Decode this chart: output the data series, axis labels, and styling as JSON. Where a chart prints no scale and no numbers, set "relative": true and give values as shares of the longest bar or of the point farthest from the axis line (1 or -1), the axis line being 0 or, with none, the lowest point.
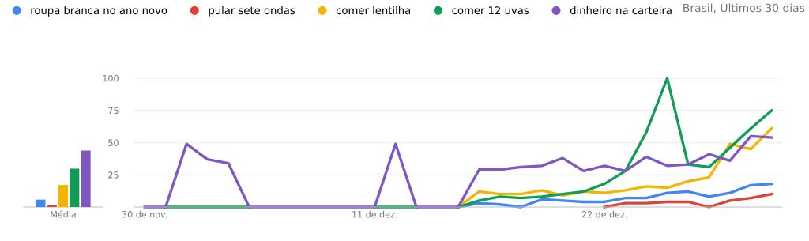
{
  "chart_data": [
    {
      "type": "bar",
      "relative": true,
      "xlabel": "Média",
      "categories": [
        null,
        null,
        null,
        null,
        null
      ],
      "values": [
        0.13,
        0.03,
        0.39,
        0.68,
        1
      ],
      "colors": [
        "#4285f4",
        "#db4437",
        "#f4b400",
        "#0f9d58",
        "#7e57c2"
      ],
      "grid": false
    },
    {
      "type": "line",
      "subtitle": "Brasil, Últimos 30 dias",
      "legend": "top",
      "grid": "y",
      "marker": "none",
      "line_style": "solid",
      "categories": [
        "30 de nov.",
        null,
        null,
        null,
        null,
        null,
        null,
        null,
        null,
        null,
        null,
        "11 de dez.",
        null,
        null,
        null,
        null,
        null,
        null,
        null,
        null,
        null,
        null,
        "22 de dez.",
        null,
        null,
        null,
        null,
        null,
        null,
        null,
        null
      ],
      "ylim": [
        0,
        100
      ],
      "yticks": [
        25,
        50,
        75,
        100
      ],
      "series": [
        {
          "name": "roupa branca no ano novo",
          "color": "#4285f4",
          "values": [
            null,
            null,
            null,
            null,
            null,
            null,
            null,
            null,
            null,
            null,
            null,
            null,
            null,
            null,
            null,
            0,
            3,
            2,
            0,
            6,
            5,
            4,
            4,
            7,
            7,
            11,
            12,
            8,
            11,
            17,
            18
          ]
        },
        {
          "name": "pular sete ondas",
          "color": "#db4437",
          "values": [
            null,
            null,
            null,
            null,
            null,
            null,
            null,
            null,
            null,
            null,
            null,
            null,
            null,
            null,
            null,
            null,
            null,
            null,
            null,
            null,
            null,
            null,
            0,
            3,
            3,
            4,
            4,
            0,
            5,
            7,
            10
          ]
        },
        {
          "name": "comer lentilha",
          "color": "#f4b400",
          "values": [
            null,
            null,
            null,
            null,
            null,
            null,
            null,
            null,
            null,
            null,
            null,
            null,
            null,
            null,
            null,
            0,
            12,
            10,
            10,
            13,
            9,
            12,
            11,
            13,
            16,
            15,
            20,
            23,
            49,
            45,
            61
          ]
        },
        {
          "name": "comer 12 uvas",
          "color": "#0f9d58",
          "values": [
            null,
            0,
            0,
            0,
            0,
            0,
            null,
            null,
            null,
            null,
            null,
            0,
            0,
            0,
            null,
            0,
            5,
            8,
            7,
            8,
            10,
            12,
            18,
            28,
            58,
            100,
            33,
            31,
            46,
            61,
            75
          ]
        },
        {
          "name": "dinheiro na carteira",
          "color": "#7e57c2",
          "values": [
            0,
            0,
            49,
            37,
            34,
            0,
            0,
            0,
            0,
            0,
            0,
            0,
            49,
            0,
            0,
            0,
            29,
            29,
            31,
            32,
            38,
            28,
            32,
            28,
            39,
            32,
            33,
            41,
            36,
            55,
            54
          ]
        }
      ]
    }
  ]
}
